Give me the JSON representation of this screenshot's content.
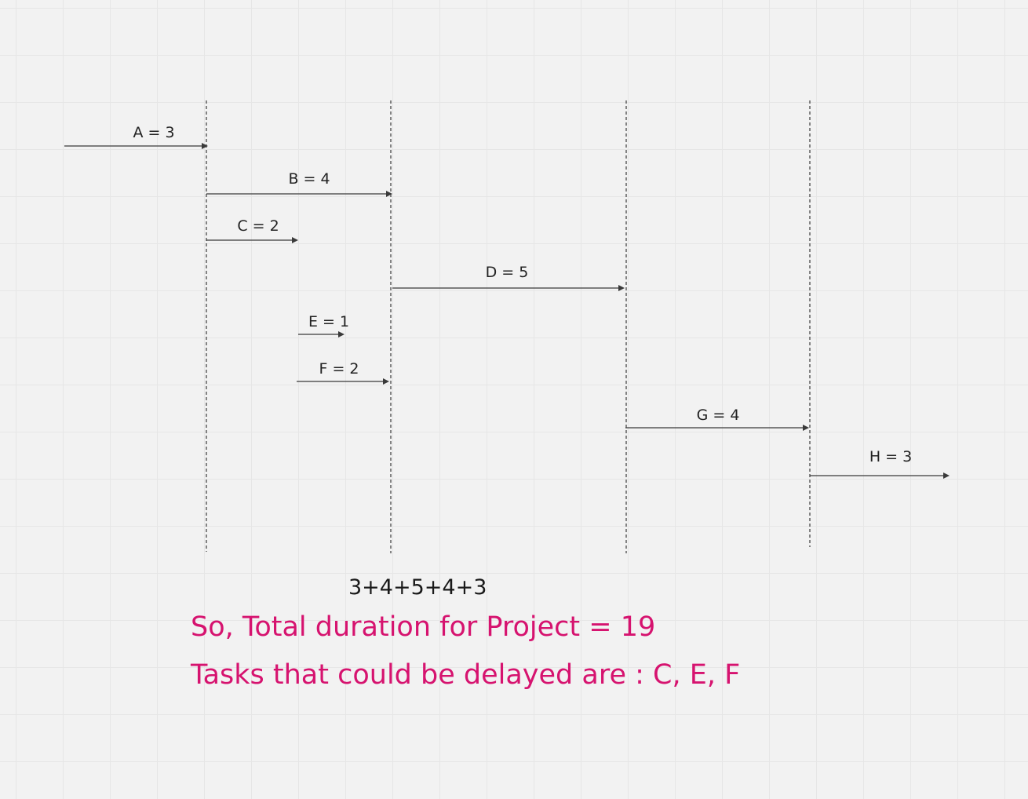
{
  "tasks": [
    {
      "id": "A",
      "label": "A = 3"
    },
    {
      "id": "B",
      "label": "B = 4"
    },
    {
      "id": "C",
      "label": "C = 2"
    },
    {
      "id": "D",
      "label": "D = 5"
    },
    {
      "id": "E",
      "label": "E = 1"
    },
    {
      "id": "F",
      "label": "F = 2"
    },
    {
      "id": "G",
      "label": "G = 4"
    },
    {
      "id": "H",
      "label": "H = 3"
    }
  ],
  "notes": {
    "sum": "3+4+5+4+3",
    "total": "So, Total duration for Project = 19",
    "delayed": "Tasks that could be delayed are : C, E, F"
  },
  "colors": {
    "background": "#f2f2f2",
    "grid": "#e6e6e6",
    "lines": "#3a3a3a",
    "accent": "#d6136f"
  }
}
